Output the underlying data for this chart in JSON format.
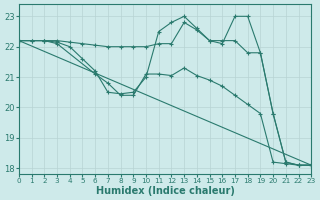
{
  "xlabel": "Humidex (Indice chaleur)",
  "background_color": "#ceeaea",
  "grid_color": "#b8d4d4",
  "line_color": "#2a7a6e",
  "xlim": [
    0,
    23
  ],
  "ylim": [
    17.8,
    23.4
  ],
  "yticks": [
    18,
    19,
    20,
    21,
    22,
    23
  ],
  "xticks": [
    0,
    1,
    2,
    3,
    4,
    5,
    6,
    7,
    8,
    9,
    10,
    11,
    12,
    13,
    14,
    15,
    16,
    17,
    18,
    19,
    20,
    21,
    22,
    23
  ],
  "series1": [
    [
      0,
      22.2
    ],
    [
      1,
      22.2
    ],
    [
      2,
      22.2
    ],
    [
      3,
      22.2
    ],
    [
      4,
      22.15
    ],
    [
      5,
      22.1
    ],
    [
      6,
      22.05
    ],
    [
      7,
      22.0
    ],
    [
      8,
      22.0
    ],
    [
      9,
      22.0
    ],
    [
      10,
      22.0
    ],
    [
      11,
      22.1
    ],
    [
      12,
      22.1
    ],
    [
      13,
      22.8
    ],
    [
      14,
      22.55
    ],
    [
      15,
      22.2
    ],
    [
      16,
      22.2
    ],
    [
      17,
      22.2
    ],
    [
      18,
      21.8
    ],
    [
      19,
      21.8
    ],
    [
      20,
      19.8
    ],
    [
      21,
      18.2
    ],
    [
      22,
      18.1
    ],
    [
      23,
      18.1
    ]
  ],
  "series2": [
    [
      0,
      22.2
    ],
    [
      1,
      22.2
    ],
    [
      2,
      22.2
    ],
    [
      3,
      22.15
    ],
    [
      4,
      22.0
    ],
    [
      5,
      21.6
    ],
    [
      6,
      21.2
    ],
    [
      7,
      20.5
    ],
    [
      8,
      20.45
    ],
    [
      9,
      20.5
    ],
    [
      10,
      21.0
    ],
    [
      11,
      22.5
    ],
    [
      12,
      22.8
    ],
    [
      13,
      23.0
    ],
    [
      14,
      22.6
    ],
    [
      15,
      22.2
    ],
    [
      16,
      22.1
    ],
    [
      17,
      23.0
    ],
    [
      18,
      23.0
    ],
    [
      19,
      21.8
    ],
    [
      20,
      19.8
    ],
    [
      21,
      18.2
    ],
    [
      22,
      18.1
    ],
    [
      23,
      18.1
    ]
  ],
  "series3": [
    [
      0,
      22.2
    ],
    [
      2,
      22.2
    ],
    [
      3,
      22.1
    ],
    [
      6,
      21.1
    ],
    [
      7,
      20.8
    ],
    [
      8,
      20.4
    ],
    [
      9,
      20.4
    ],
    [
      10,
      21.1
    ],
    [
      11,
      21.1
    ],
    [
      12,
      21.05
    ],
    [
      13,
      21.3
    ],
    [
      14,
      21.05
    ],
    [
      15,
      20.9
    ],
    [
      16,
      20.7
    ],
    [
      17,
      20.4
    ],
    [
      18,
      20.1
    ],
    [
      19,
      19.8
    ],
    [
      20,
      18.2
    ],
    [
      21,
      18.15
    ],
    [
      22,
      18.1
    ],
    [
      23,
      18.1
    ]
  ],
  "series4": [
    [
      0,
      22.2
    ],
    [
      23,
      18.1
    ]
  ]
}
